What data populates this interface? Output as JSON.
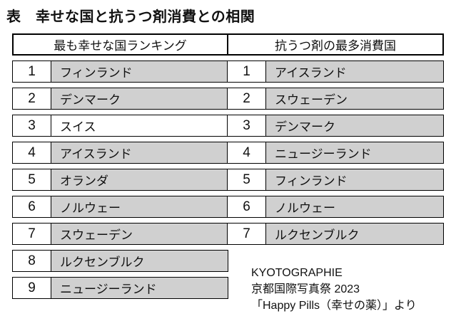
{
  "chart_data": {
    "type": "table",
    "title": "表　幸せな国と抗うつ剤消費との相関",
    "tables": [
      {
        "id": "happiest-countries",
        "header": "最も幸せな国ランキング",
        "rows": [
          {
            "rank": "1",
            "country": "フィンランド",
            "shaded": true
          },
          {
            "rank": "2",
            "country": "デンマーク",
            "shaded": true
          },
          {
            "rank": "3",
            "country": "スイス",
            "shaded": false
          },
          {
            "rank": "4",
            "country": "アイスランド",
            "shaded": true
          },
          {
            "rank": "5",
            "country": "オランダ",
            "shaded": true
          },
          {
            "rank": "6",
            "country": "ノルウェー",
            "shaded": true
          },
          {
            "rank": "7",
            "country": "スウェーデン",
            "shaded": true
          },
          {
            "rank": "8",
            "country": "ルクセンブルク",
            "shaded": true
          },
          {
            "rank": "9",
            "country": "ニュージーランド",
            "shaded": true
          }
        ]
      },
      {
        "id": "antidepressant-consumers",
        "header": "抗うつ剤の最多消費国",
        "rows": [
          {
            "rank": "1",
            "country": "アイスランド",
            "shaded": true
          },
          {
            "rank": "2",
            "country": "スウェーデン",
            "shaded": true
          },
          {
            "rank": "3",
            "country": "デンマーク",
            "shaded": true
          },
          {
            "rank": "4",
            "country": "ニュージーランド",
            "shaded": true
          },
          {
            "rank": "5",
            "country": "フィンランド",
            "shaded": true
          },
          {
            "rank": "6",
            "country": "ノルウェー",
            "shaded": true
          },
          {
            "rank": "7",
            "country": "ルクセンブルク",
            "shaded": true
          }
        ]
      }
    ]
  },
  "caption": {
    "line1": "KYOTOGRAPHIE",
    "line2": "京都国際写真祭 2023",
    "line3": "「Happy Pills（幸せの薬）」より"
  },
  "colors": {
    "shaded_cell": "#d0d0d0",
    "border": "#000000",
    "background": "#ffffff",
    "text": "#111111"
  }
}
